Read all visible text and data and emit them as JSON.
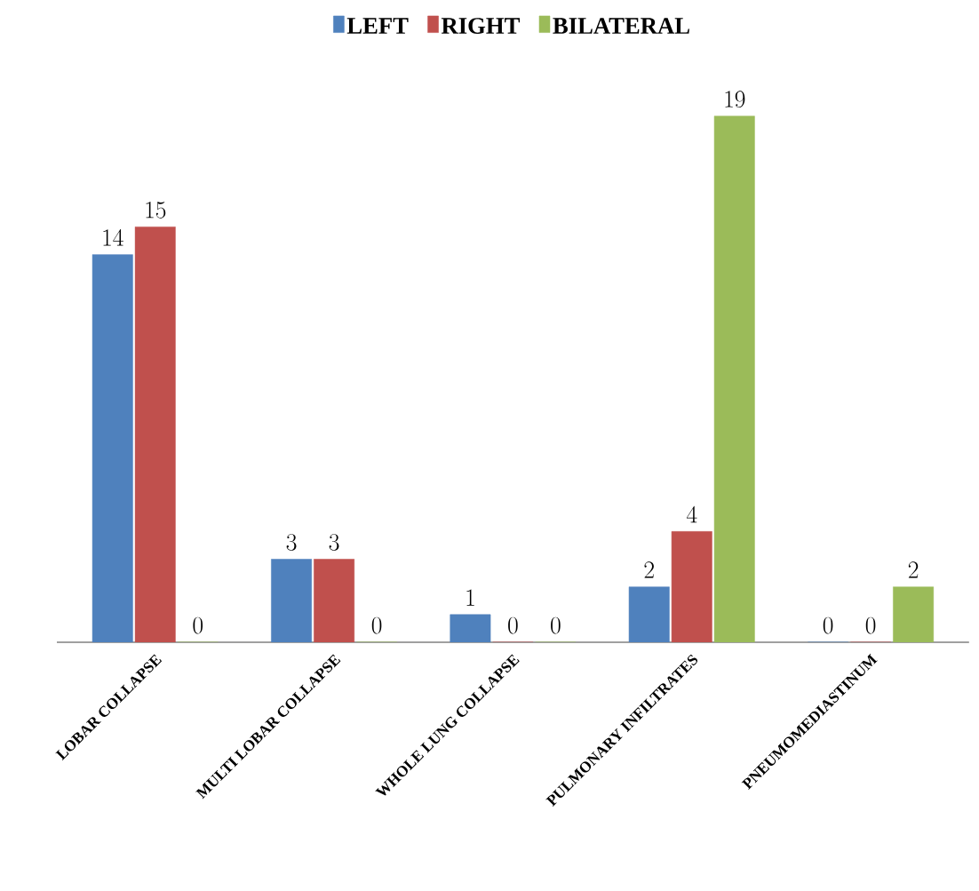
{
  "chart_data": {
    "type": "bar",
    "categories": [
      "LOBAR COLLAPSE",
      "MULTI LOBAR COLLAPSE",
      "WHOLE LUNG COLLAPSE",
      "PULMONARY INFILTRATES",
      "PNEUMOMEDIASTINUM"
    ],
    "series": [
      {
        "name": "LEFT",
        "color": "#4f81bd",
        "values": [
          14,
          3,
          1,
          2,
          0
        ]
      },
      {
        "name": "RIGHT",
        "color": "#c0504d",
        "values": [
          15,
          3,
          0,
          4,
          0
        ]
      },
      {
        "name": "BILATERAL",
        "color": "#9bbb59",
        "values": [
          0,
          0,
          0,
          19,
          2
        ]
      }
    ],
    "data_labels": true,
    "legend": "top"
  }
}
